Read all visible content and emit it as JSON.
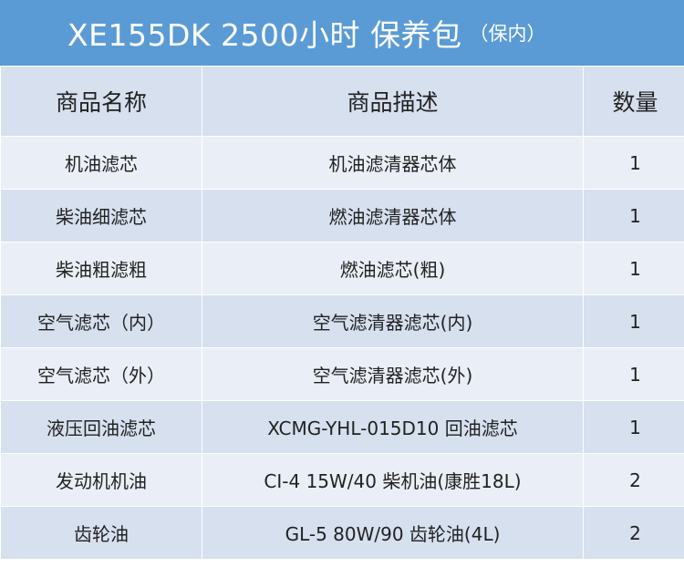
{
  "header": {
    "title": "XE155DK 2500小时 保养包",
    "subtitle": "（保内）"
  },
  "table": {
    "columns": [
      "商品名称",
      "商品描述",
      "数量"
    ],
    "rows": [
      {
        "name": "机油滤芯",
        "desc": "机油滤清器芯体",
        "qty": "1"
      },
      {
        "name": "柴油细滤芯",
        "desc": "燃油滤清器芯体",
        "qty": "1"
      },
      {
        "name": "柴油粗滤粗",
        "desc": "燃油滤芯(粗)",
        "qty": "1"
      },
      {
        "name": "空气滤芯（内）",
        "desc": "空气滤清器滤芯(内)",
        "qty": "1"
      },
      {
        "name": "空气滤芯（外）",
        "desc": "空气滤清器滤芯(外)",
        "qty": "1"
      },
      {
        "name": "液压回油滤芯",
        "desc": "XCMG-YHL-015D10 回油滤芯",
        "qty": "1"
      },
      {
        "name": "发动机机油",
        "desc": "CI-4 15W/40 柴机油(康胜18L)",
        "qty": "2"
      },
      {
        "name": "齿轮油",
        "desc": "GL-5 80W/90 齿轮油(4L)",
        "qty": "2"
      }
    ]
  }
}
